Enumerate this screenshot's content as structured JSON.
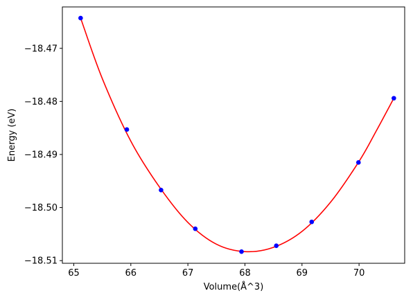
{
  "chart_data": {
    "type": "scatter",
    "title": "",
    "xlabel": "Volume(Å^3)",
    "ylabel": "Energy (eV)",
    "xlim": [
      64.8,
      70.8
    ],
    "ylim": [
      -18.5105,
      -18.4622
    ],
    "xticks": [
      65,
      66,
      67,
      68,
      69,
      70
    ],
    "xtick_labels": [
      "65",
      "66",
      "67",
      "68",
      "69",
      "70"
    ],
    "yticks": [
      -18.47,
      -18.48,
      -18.49,
      -18.5,
      -18.51
    ],
    "ytick_labels": [
      "−18.47",
      "−18.48",
      "−18.49",
      "−18.50",
      "−18.51"
    ],
    "grid": false,
    "series": [
      {
        "kind": "points",
        "color": "#0000ff",
        "x": [
          65.12,
          65.93,
          66.53,
          67.13,
          67.94,
          68.55,
          69.17,
          69.99,
          70.61
        ],
        "y": [
          -18.4643,
          -18.4853,
          -18.4967,
          -18.504,
          -18.5083,
          -18.5072,
          -18.5027,
          -18.4915,
          -18.4794
        ]
      },
      {
        "kind": "fit-line",
        "color": "#ff0000",
        "x": [
          65.12,
          65.5,
          66.0,
          66.5,
          67.0,
          67.5,
          68.0,
          68.5,
          69.0,
          69.5,
          70.0,
          70.3,
          70.61
        ],
        "y": [
          -18.4643,
          -18.4757,
          -18.4875,
          -18.4961,
          -18.5028,
          -18.5069,
          -18.5083,
          -18.5075,
          -18.5045,
          -18.499,
          -18.4913,
          -18.4856,
          -18.4794
        ]
      }
    ]
  }
}
